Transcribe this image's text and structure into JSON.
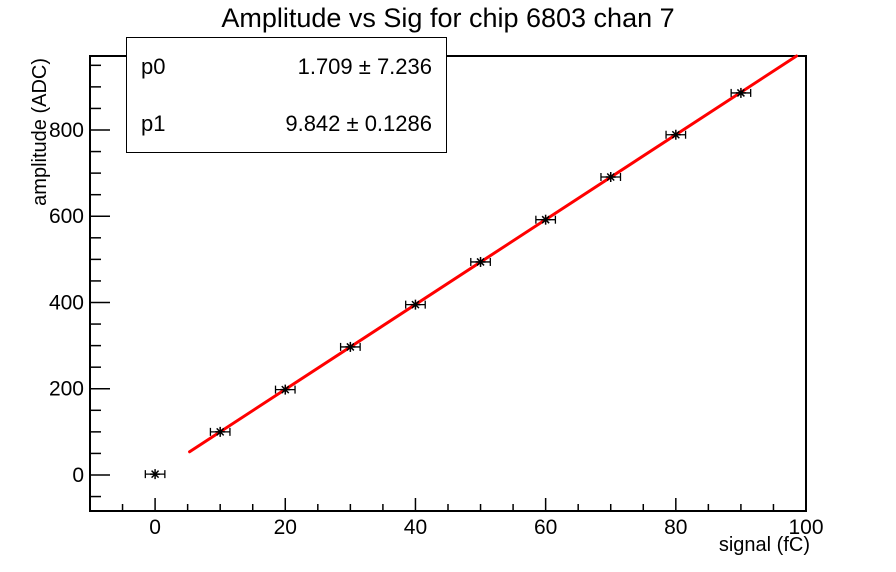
{
  "chart_data": {
    "type": "scatter",
    "title": "Amplitude vs Sig for chip 6803 chan 7",
    "xlabel": "signal (fC)",
    "ylabel": "amplitude (ADC)",
    "xlim": [
      -10,
      100
    ],
    "ylim": [
      -83.5,
      971.6
    ],
    "x_major_ticks": [
      0,
      20,
      40,
      60,
      80,
      100
    ],
    "x_minor_step": 5,
    "y_major_ticks": [
      0,
      200,
      400,
      600,
      800
    ],
    "y_minor_step": 50,
    "grid": false,
    "legend_position": "none",
    "series": [
      {
        "name": "amplitude-vs-signal",
        "marker": "star",
        "color": "#000000",
        "x": [
          0,
          10,
          20,
          30,
          40,
          50,
          60,
          70,
          80,
          90
        ],
        "y": [
          2,
          100,
          198,
          297,
          395,
          494,
          592,
          691,
          789,
          886
        ],
        "xerr": 1.5
      }
    ],
    "fit": {
      "type": "linear",
      "p0": 1.709,
      "p1": 9.842,
      "x_start": 5.3,
      "color": "#ff0000",
      "line_width": 3
    }
  },
  "stats_box": {
    "rows": [
      {
        "name": "p0",
        "display": "1.709 ± 7.236",
        "value": 1.709,
        "error": 7.236
      },
      {
        "name": "p1",
        "display": "9.842 ± 0.1286",
        "value": 9.842,
        "error": 0.1286
      }
    ]
  },
  "colors": {
    "background": "#ffffff",
    "frame": "#000000",
    "marker": "#000000",
    "fit_line": "#ff0000",
    "text": "#000000"
  }
}
